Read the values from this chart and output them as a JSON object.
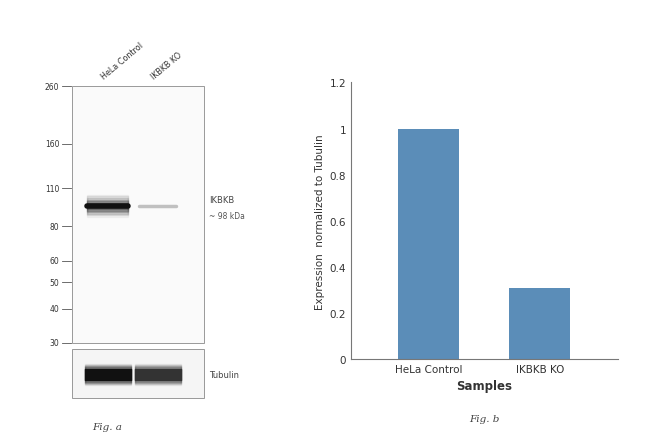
{
  "fig_width": 6.5,
  "fig_height": 4.39,
  "dpi": 100,
  "background_color": "#ffffff",
  "panel_a": {
    "lane_labels": [
      "HeLa Control",
      "IKBKB KO"
    ],
    "mw_markers": [
      260,
      160,
      110,
      80,
      60,
      50,
      40,
      30
    ],
    "ikbkb_label": "IKBKB",
    "ikbkb_sublabel": "~ 98 kDa",
    "tubulin_label": "Tubulin",
    "fig_label": "Fig. a"
  },
  "panel_b": {
    "fig_label": "Fig. b",
    "categories": [
      "HeLa Control",
      "IKBKB KO"
    ],
    "values": [
      1.0,
      0.31
    ],
    "bar_color": "#5b8db8",
    "ylim": [
      0,
      1.2
    ],
    "yticks": [
      0,
      0.2,
      0.4,
      0.6,
      0.8,
      1.0,
      1.2
    ],
    "ylabel": "Expression  normalized to Tubulin",
    "xlabel": "Samples",
    "bar_width": 0.55
  }
}
